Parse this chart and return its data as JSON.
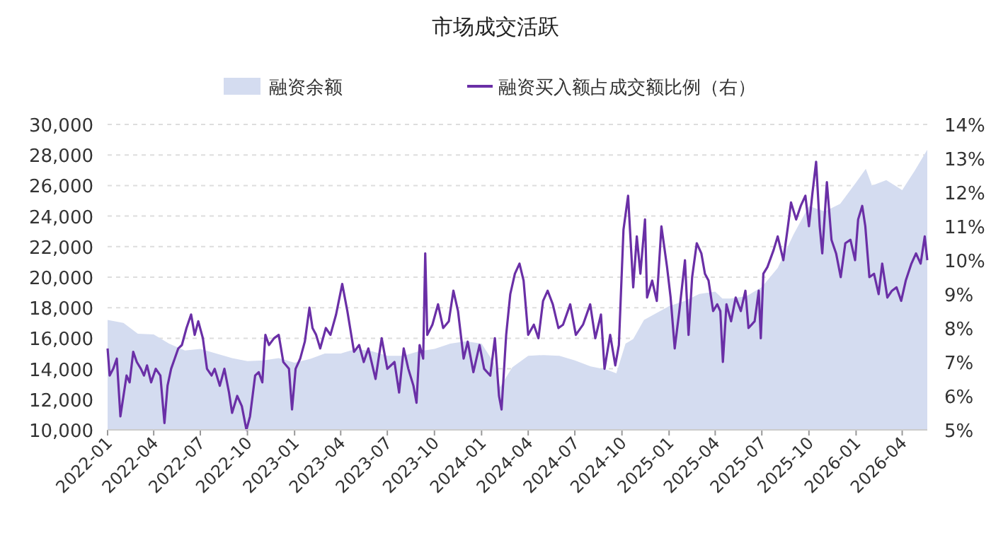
{
  "chart_data": {
    "type": "line",
    "title": "市场成交活跃",
    "legend": "top",
    "grid": "y",
    "xlim": [
      "2022-01-01",
      "2026-05-20"
    ],
    "xticks": [
      "2022-01",
      "2022-04",
      "2022-07",
      "2022-10",
      "2023-01",
      "2023-04",
      "2023-07",
      "2023-10",
      "2024-01",
      "2024-04",
      "2024-07",
      "2024-10",
      "2025-01",
      "2025-04",
      "2025-07",
      "2025-10",
      "2026-01",
      "2026-04"
    ],
    "ylim": [
      10000,
      30000
    ],
    "yticks": [
      {
        "value": 10000,
        "label": "10,000"
      },
      {
        "value": 12000,
        "label": "12,000"
      },
      {
        "value": 14000,
        "label": "14,000"
      },
      {
        "value": 16000,
        "label": "16,000"
      },
      {
        "value": 18000,
        "label": "18,000"
      },
      {
        "value": 20000,
        "label": "20,000"
      },
      {
        "value": 22000,
        "label": "22,000"
      },
      {
        "value": 24000,
        "label": "24,000"
      },
      {
        "value": 26000,
        "label": "26,000"
      },
      {
        "value": 28000,
        "label": "28,000"
      },
      {
        "value": 30000,
        "label": "30,000"
      }
    ],
    "y2lim": [
      5,
      14
    ],
    "y2ticks": [
      {
        "value": 5,
        "label": "5%"
      },
      {
        "value": 6,
        "label": "6%"
      },
      {
        "value": 7,
        "label": "7%"
      },
      {
        "value": 8,
        "label": "8%"
      },
      {
        "value": 9,
        "label": "9%"
      },
      {
        "value": 10,
        "label": "10%"
      },
      {
        "value": 11,
        "label": "11%"
      },
      {
        "value": 12,
        "label": "12%"
      },
      {
        "value": 13,
        "label": "13%"
      },
      {
        "value": 14,
        "label": "14%"
      }
    ],
    "series": [
      {
        "name": "融资余额",
        "type": "area",
        "color": "#d4dcf0",
        "x": [
          "2022-01-01",
          "2022-02-01",
          "2022-03-01",
          "2022-04-01",
          "2022-05-01",
          "2022-06-01",
          "2022-07-01",
          "2022-08-01",
          "2022-09-01",
          "2022-10-01",
          "2022-11-01",
          "2022-12-01",
          "2023-01-01",
          "2023-02-01",
          "2023-03-01",
          "2023-04-01",
          "2023-05-01",
          "2023-06-01",
          "2023-07-01",
          "2023-08-01",
          "2023-09-01",
          "2023-10-01",
          "2023-11-01",
          "2023-12-01",
          "2024-01-01",
          "2024-01-25",
          "2024-02-06",
          "2024-03-01",
          "2024-04-01",
          "2024-05-01",
          "2024-06-01",
          "2024-07-01",
          "2024-08-01",
          "2024-09-01",
          "2024-09-20",
          "2024-10-08",
          "2024-10-23",
          "2024-11-13",
          "2025-01-01",
          "2025-02-01",
          "2025-03-01",
          "2025-04-01",
          "2025-04-15",
          "2025-05-01",
          "2025-06-01",
          "2025-07-01",
          "2025-08-01",
          "2025-09-01",
          "2025-10-01",
          "2025-11-01",
          "2025-12-01",
          "2026-01-01",
          "2026-01-20",
          "2026-02-01",
          "2026-03-01",
          "2026-04-01",
          "2026-04-25",
          "2026-05-20"
        ],
        "values": [
          17200,
          17000,
          16300,
          16250,
          15650,
          15200,
          15300,
          15000,
          14700,
          14500,
          14550,
          14700,
          14400,
          14650,
          15000,
          15000,
          15300,
          15150,
          14850,
          14850,
          15150,
          15300,
          15650,
          15800,
          15650,
          14400,
          12800,
          14100,
          14850,
          14900,
          14850,
          14550,
          14150,
          13950,
          13700,
          15650,
          15950,
          17200,
          18100,
          18450,
          18900,
          19050,
          18600,
          18600,
          18750,
          19350,
          20600,
          22800,
          24650,
          24300,
          24800,
          26200,
          27100,
          26000,
          26350,
          25700,
          26950,
          28350
        ]
      },
      {
        "name": "融资买入额占成交额比例（右）",
        "axis": "y2",
        "color": "#6a2fa6",
        "x": [
          "2022-01-01",
          "2022-01-05",
          "2022-01-12",
          "2022-01-19",
          "2022-01-26",
          "2022-02-01",
          "2022-02-07",
          "2022-02-13",
          "2022-02-20",
          "2022-02-27",
          "2022-03-07",
          "2022-03-13",
          "2022-03-19",
          "2022-03-27",
          "2022-04-05",
          "2022-04-14",
          "2022-04-22",
          "2022-04-28",
          "2022-05-05",
          "2022-05-12",
          "2022-05-19",
          "2022-05-26",
          "2022-06-04",
          "2022-06-13",
          "2022-06-20",
          "2022-06-27",
          "2022-07-06",
          "2022-07-14",
          "2022-07-23",
          "2022-07-29",
          "2022-08-08",
          "2022-08-17",
          "2022-08-26",
          "2022-09-01",
          "2022-09-11",
          "2022-09-20",
          "2022-09-29",
          "2022-10-06",
          "2022-10-16",
          "2022-10-23",
          "2022-10-30",
          "2022-11-05",
          "2022-11-12",
          "2022-11-22",
          "2022-12-01",
          "2022-12-10",
          "2022-12-21",
          "2022-12-27",
          "2023-01-03",
          "2023-01-12",
          "2023-01-21",
          "2023-01-30",
          "2023-02-05",
          "2023-02-12",
          "2023-02-20",
          "2023-03-03",
          "2023-03-12",
          "2023-03-23",
          "2023-04-04",
          "2023-04-14",
          "2023-04-27",
          "2023-05-07",
          "2023-05-16",
          "2023-05-25",
          "2023-06-08",
          "2023-06-20",
          "2023-07-01",
          "2023-07-15",
          "2023-07-24",
          "2023-08-02",
          "2023-08-11",
          "2023-08-21",
          "2023-08-27",
          "2023-09-02",
          "2023-09-09",
          "2023-09-13",
          "2023-09-17",
          "2023-09-27",
          "2023-10-08",
          "2023-10-18",
          "2023-10-29",
          "2023-11-07",
          "2023-11-16",
          "2023-11-27",
          "2023-12-05",
          "2023-12-16",
          "2023-12-28",
          "2024-01-06",
          "2024-01-18",
          "2024-01-27",
          "2024-02-04",
          "2024-02-09",
          "2024-02-18",
          "2024-02-26",
          "2024-03-06",
          "2024-03-15",
          "2024-03-23",
          "2024-04-01",
          "2024-04-12",
          "2024-04-21",
          "2024-04-30",
          "2024-05-09",
          "2024-05-19",
          "2024-05-30",
          "2024-06-08",
          "2024-06-22",
          "2024-07-03",
          "2024-07-17",
          "2024-07-31",
          "2024-08-10",
          "2024-08-21",
          "2024-08-28",
          "2024-09-08",
          "2024-09-18",
          "2024-09-25",
          "2024-10-04",
          "2024-10-13",
          "2024-10-23",
          "2024-10-30",
          "2024-11-06",
          "2024-11-15",
          "2024-11-19",
          "2024-11-29",
          "2024-12-08",
          "2024-12-17",
          "2024-12-28",
          "2025-01-04",
          "2025-01-12",
          "2025-01-21",
          "2025-02-01",
          "2025-02-08",
          "2025-02-15",
          "2025-02-24",
          "2025-03-05",
          "2025-03-12",
          "2025-03-19",
          "2025-03-28",
          "2025-04-05",
          "2025-04-11",
          "2025-04-16",
          "2025-04-23",
          "2025-05-02",
          "2025-05-11",
          "2025-05-21",
          "2025-05-30",
          "2025-06-05",
          "2025-06-17",
          "2025-06-25",
          "2025-06-29",
          "2025-07-04",
          "2025-07-12",
          "2025-07-24",
          "2025-08-01",
          "2025-08-12",
          "2025-08-21",
          "2025-08-27",
          "2025-09-06",
          "2025-09-15",
          "2025-09-24",
          "2025-10-01",
          "2025-10-08",
          "2025-10-15",
          "2025-10-22",
          "2025-10-27",
          "2025-11-05",
          "2025-11-14",
          "2025-11-23",
          "2025-12-02",
          "2025-12-11",
          "2025-12-21",
          "2025-12-30",
          "2026-01-05",
          "2026-01-13",
          "2026-01-19",
          "2026-01-27",
          "2026-02-05",
          "2026-02-14",
          "2026-02-21",
          "2026-03-03",
          "2026-03-12",
          "2026-03-21",
          "2026-03-30",
          "2026-04-08",
          "2026-04-19",
          "2026-04-28",
          "2026-05-07",
          "2026-05-15",
          "2026-05-20"
        ],
        "values": [
          7.4,
          6.6,
          6.8,
          7.1,
          5.4,
          6.0,
          6.6,
          6.4,
          7.3,
          7.0,
          6.8,
          6.6,
          6.9,
          6.4,
          6.8,
          6.6,
          5.2,
          6.3,
          6.8,
          7.1,
          7.4,
          7.5,
          8.0,
          8.4,
          7.8,
          8.2,
          7.7,
          6.8,
          6.6,
          6.8,
          6.3,
          6.8,
          6.1,
          5.5,
          6.0,
          5.7,
          5.0,
          5.4,
          6.6,
          6.7,
          6.4,
          7.8,
          7.5,
          7.7,
          7.8,
          7.0,
          6.8,
          5.6,
          6.8,
          7.1,
          7.6,
          8.6,
          8.0,
          7.8,
          7.4,
          8.0,
          7.8,
          8.4,
          9.3,
          8.5,
          7.3,
          7.5,
          7.0,
          7.4,
          6.5,
          7.7,
          6.8,
          7.0,
          6.1,
          7.4,
          6.8,
          6.3,
          5.8,
          7.5,
          7.1,
          10.2,
          7.8,
          8.1,
          8.7,
          8.0,
          8.2,
          9.1,
          8.5,
          7.1,
          7.6,
          6.7,
          7.5,
          6.8,
          6.6,
          7.7,
          6.0,
          5.6,
          7.8,
          9.0,
          9.6,
          9.9,
          9.4,
          7.8,
          8.1,
          7.7,
          8.8,
          9.1,
          8.7,
          8.0,
          8.1,
          8.7,
          7.8,
          8.1,
          8.7,
          7.7,
          8.4,
          6.8,
          7.8,
          6.9,
          7.5,
          10.9,
          11.9,
          9.2,
          10.7,
          9.6,
          11.2,
          8.9,
          9.4,
          8.8,
          11.0,
          9.8,
          8.9,
          7.4,
          8.5,
          10.0,
          7.8,
          9.5,
          10.5,
          10.2,
          9.6,
          9.4,
          8.5,
          8.7,
          8.5,
          7.0,
          8.7,
          8.2,
          8.9,
          8.5,
          9.1,
          8.0,
          8.2,
          9.1,
          7.7,
          9.6,
          9.8,
          10.3,
          10.7,
          10.0,
          11.0,
          11.7,
          11.2,
          11.6,
          11.9,
          11.0,
          12.0,
          12.9,
          11.0,
          10.2,
          12.3,
          10.6,
          10.2,
          9.5,
          10.5,
          10.6,
          10.0,
          11.2,
          11.6,
          11.0,
          9.5,
          9.6,
          9.0,
          9.9,
          8.9,
          9.1,
          9.2,
          8.8,
          9.4,
          9.9,
          10.2,
          9.9,
          10.7,
          10.0
        ]
      }
    ]
  }
}
